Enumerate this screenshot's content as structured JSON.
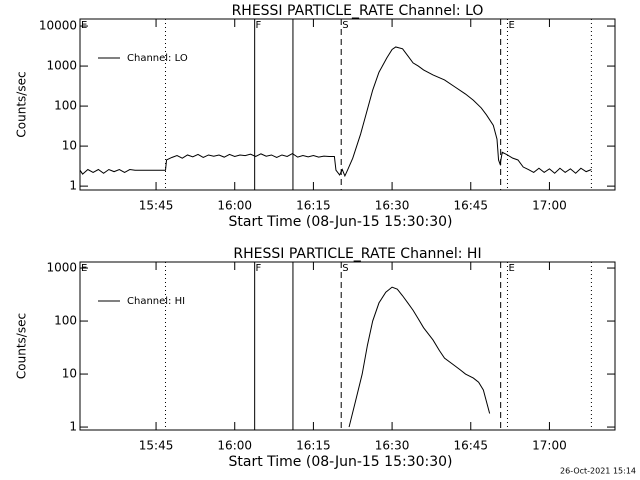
{
  "chart_data": [
    {
      "type": "line",
      "title": "RHESSI  PARTICLE_RATE  Channel:  LO",
      "xlabel": "Start Time (08-Jun-15 15:30:30)",
      "ylabel": "Counts/sec",
      "log_y": true,
      "legend": "upper left",
      "color": "#000000",
      "xlim": [
        930.5,
        1032.5
      ],
      "ylim": [
        0.8,
        15000
      ],
      "xticks": [
        {
          "value": 945,
          "label": "15:45"
        },
        {
          "value": 960,
          "label": "16:00"
        },
        {
          "value": 975,
          "label": "16:15"
        },
        {
          "value": 990,
          "label": "16:30"
        },
        {
          "value": 1005,
          "label": "16:45"
        },
        {
          "value": 1020,
          "label": "17:00"
        }
      ],
      "yticks": [
        1,
        10,
        100,
        1000,
        10000
      ],
      "vlines": [
        {
          "x": 946.8,
          "style": "dotted"
        },
        {
          "x": 963.8,
          "style": "solid"
        },
        {
          "x": 971.1,
          "style": "solid"
        },
        {
          "x": 980.3,
          "style": "dashed"
        },
        {
          "x": 1010.7,
          "style": "dashed"
        },
        {
          "x": 1012.0,
          "style": "dotted"
        },
        {
          "x": 1028.0,
          "style": "dotted"
        }
      ],
      "markers": [
        {
          "x": 931.3,
          "label": "E"
        },
        {
          "x": 964.5,
          "label": "F"
        },
        {
          "x": 981.1,
          "label": "S"
        },
        {
          "x": 1012.8,
          "label": "E"
        }
      ],
      "series": [
        {
          "name": "Channel: LO",
          "color": "#000000",
          "x": [
            930.5,
            931,
            932,
            933,
            934,
            935,
            936,
            937,
            938,
            939,
            940,
            941,
            942,
            943,
            944,
            945,
            946.8,
            947,
            948,
            949,
            950,
            951,
            952,
            953,
            954,
            955,
            956,
            957,
            958,
            959,
            960,
            961,
            962,
            963,
            964,
            965,
            966,
            967,
            968,
            969,
            970,
            971,
            972,
            973,
            974,
            975,
            976,
            977,
            978,
            979,
            979.3,
            980,
            980.5,
            981,
            981.5,
            982.5,
            984,
            985,
            986.3,
            987.5,
            989,
            990,
            990.7,
            992,
            993,
            994,
            995,
            996,
            997.8,
            1000,
            1002,
            1004,
            1005.5,
            1007,
            1008,
            1009.3,
            1010,
            1010.3,
            1010.6,
            1011,
            1012,
            1013,
            1014,
            1015,
            1016,
            1017,
            1018,
            1019,
            1020,
            1021,
            1022,
            1023,
            1024,
            1025,
            1026,
            1027,
            1028
          ],
          "values": [
            2.5,
            2,
            2.6,
            2.2,
            2.6,
            2.1,
            2.6,
            2.3,
            2.6,
            2.2,
            2.6,
            2.5,
            2.5,
            2.5,
            2.5,
            2.5,
            2.5,
            4.5,
            5.2,
            5.8,
            5,
            6,
            5.4,
            6.2,
            5.2,
            6,
            5.6,
            6,
            5.3,
            6.2,
            5.5,
            6,
            5.8,
            6.3,
            5.5,
            6.4,
            5.6,
            6,
            5.2,
            6,
            5.5,
            6.5,
            5.3,
            5.8,
            5.4,
            5.8,
            5.3,
            5.6,
            5.5,
            5.5,
            2.5,
            1.9,
            2.6,
            1.8,
            2.5,
            5,
            20,
            60,
            250,
            700,
            1600,
            2600,
            3000,
            2700,
            1800,
            1200,
            1000,
            800,
            600,
            450,
            300,
            200,
            140,
            90,
            60,
            33,
            15,
            4.5,
            3.5,
            7,
            6,
            5,
            4.5,
            3,
            2.6,
            2.2,
            2.8,
            2.2,
            2.7,
            2.1,
            2.8,
            2.2,
            2.7,
            2.1,
            2.8,
            2.3,
            2.6
          ]
        }
      ]
    },
    {
      "type": "line",
      "title": "RHESSI  PARTICLE_RATE  Channel:  HI",
      "xlabel": "Start Time (08-Jun-15 15:30:30)",
      "ylabel": "Counts/sec",
      "log_y": true,
      "legend": "upper left",
      "color": "#000000",
      "xlim": [
        930.5,
        1032.5
      ],
      "ylim": [
        0.88,
        1300
      ],
      "xticks": [
        {
          "value": 945,
          "label": "15:45"
        },
        {
          "value": 960,
          "label": "16:00"
        },
        {
          "value": 975,
          "label": "16:15"
        },
        {
          "value": 990,
          "label": "16:30"
        },
        {
          "value": 1005,
          "label": "16:45"
        },
        {
          "value": 1020,
          "label": "17:00"
        }
      ],
      "yticks": [
        1,
        10,
        100,
        1000
      ],
      "vlines": [
        {
          "x": 946.8,
          "style": "dotted"
        },
        {
          "x": 963.8,
          "style": "solid"
        },
        {
          "x": 971.1,
          "style": "solid"
        },
        {
          "x": 980.3,
          "style": "dashed"
        },
        {
          "x": 1010.7,
          "style": "dashed"
        },
        {
          "x": 1012.0,
          "style": "dotted"
        },
        {
          "x": 1028.0,
          "style": "dotted"
        }
      ],
      "markers": [
        {
          "x": 931.3,
          "label": "E"
        },
        {
          "x": 964.5,
          "label": "F"
        },
        {
          "x": 981.1,
          "label": "S"
        },
        {
          "x": 1012.8,
          "label": "E"
        }
      ],
      "series": [
        {
          "name": "Channel: HI",
          "color": "#000000",
          "x": [
            981.8,
            983,
            984.3,
            985.3,
            986.3,
            987.5,
            988.8,
            990,
            991,
            992,
            993,
            994,
            995,
            996,
            997.8,
            999,
            1000,
            1001.7,
            1003,
            1004,
            1005.5,
            1006.5,
            1007.4,
            1008,
            1008.6
          ],
          "values": [
            1,
            3,
            10,
            35,
            100,
            220,
            350,
            436,
            400,
            300,
            220,
            160,
            110,
            75,
            44,
            28,
            20,
            15,
            12,
            10,
            8.4,
            7,
            5,
            3,
            1.8
          ]
        }
      ]
    }
  ],
  "footer": "26-Oct-2021 15:14"
}
